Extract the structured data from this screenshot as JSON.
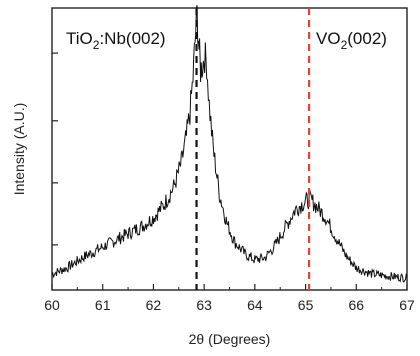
{
  "chart_data": {
    "type": "line",
    "xlabel": "2θ (Degrees)",
    "ylabel": "Intensity (A.U.)",
    "xlim": [
      60,
      67
    ],
    "ylim": [
      0,
      14
    ],
    "x_ticks": [
      60,
      61,
      62,
      63,
      64,
      65,
      66,
      67
    ],
    "y_ticks_labeled": false,
    "grid": false,
    "colors": {
      "trace": "#111111",
      "tio2_marker": "#111111",
      "vo2_marker": "#e8412c",
      "axes": "#222222"
    },
    "reference_lines": [
      {
        "x": 62.85,
        "style": "dashed",
        "color": "#111111",
        "label_main": "TiO",
        "label_sub": "2",
        "label_rest": ":Nb(002)"
      },
      {
        "x": 65.07,
        "style": "dashed",
        "color": "#e8412c",
        "label_main": "VO",
        "label_sub": "2",
        "label_rest": "(002)"
      }
    ],
    "series": [
      {
        "values_note_free": true,
        "x": [
          60.0,
          60.3,
          60.6,
          60.9,
          61.2,
          61.5,
          61.8,
          62.0,
          62.2,
          62.4,
          62.55,
          62.65,
          62.72,
          62.78,
          62.82,
          62.86,
          62.9,
          62.93,
          62.97,
          63.01,
          63.05,
          63.1,
          63.18,
          63.3,
          63.45,
          63.6,
          63.8,
          64.0,
          64.2,
          64.4,
          64.6,
          64.8,
          65.0,
          65.1,
          65.2,
          65.4,
          65.6,
          65.8,
          66.0,
          66.3,
          66.6,
          67.0
        ],
        "values": [
          0.8,
          1.1,
          1.6,
          2.0,
          2.4,
          2.8,
          3.2,
          3.6,
          4.2,
          5.1,
          6.3,
          7.6,
          8.8,
          10.5,
          12.3,
          13.7,
          12.0,
          10.9,
          11.2,
          11.6,
          11.3,
          9.2,
          7.0,
          4.8,
          3.3,
          2.4,
          1.8,
          1.5,
          1.6,
          2.2,
          3.1,
          4.0,
          4.4,
          4.5,
          4.2,
          3.6,
          2.6,
          1.7,
          1.1,
          0.8,
          0.7,
          0.6
        ]
      }
    ]
  }
}
